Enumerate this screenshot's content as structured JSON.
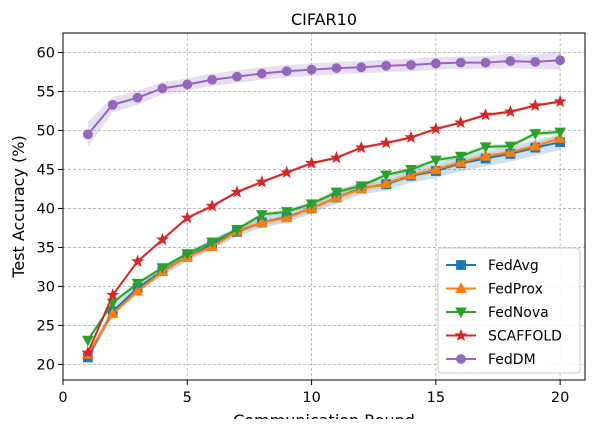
{
  "chart_data": {
    "type": "line",
    "title": "CIFAR10",
    "xlabel": "Communication Round",
    "ylabel": "Test Accuracy (%)",
    "xlim": [
      0,
      21
    ],
    "ylim": [
      18.0,
      62.5
    ],
    "xticks": [
      "0",
      "5",
      "10",
      "15",
      "20"
    ],
    "yticks": [
      "20",
      "25",
      "30",
      "35",
      "40",
      "45",
      "50",
      "55",
      "60"
    ],
    "grid": true,
    "legend_position": "lower-right",
    "x": [
      1,
      2,
      3,
      4,
      5,
      6,
      7,
      8,
      9,
      10,
      11,
      12,
      13,
      14,
      15,
      16,
      17,
      18,
      19,
      20
    ],
    "series": [
      {
        "name": "FedAvg",
        "color": "#1f77b4",
        "marker": "square",
        "values": [
          20.9,
          26.8,
          29.8,
          32.0,
          33.8,
          35.4,
          37.0,
          38.2,
          38.9,
          40.0,
          41.4,
          42.6,
          43.1,
          44.2,
          44.8,
          45.8,
          46.4,
          47.0,
          47.8,
          48.5
        ],
        "band": [
          0.5,
          0.6,
          0.6,
          0.6,
          0.6,
          0.6,
          0.6,
          0.7,
          0.7,
          0.7,
          0.8,
          0.8,
          0.8,
          0.9,
          0.9,
          1.0,
          1.0,
          1.0,
          1.0,
          1.0
        ]
      },
      {
        "name": "FedProx",
        "color": "#ff7f0e",
        "marker": "triangle-up",
        "values": [
          21.3,
          26.5,
          29.4,
          31.9,
          33.8,
          35.1,
          37.1,
          38.2,
          38.8,
          40.0,
          41.4,
          42.5,
          43.2,
          44.3,
          45.0,
          45.9,
          46.7,
          47.2,
          48.0,
          49.0
        ],
        "band": [
          0.4,
          0.4,
          0.4,
          0.4,
          0.4,
          0.4,
          0.4,
          0.4,
          0.4,
          0.4,
          0.4,
          0.4,
          0.4,
          0.4,
          0.4,
          0.4,
          0.4,
          0.4,
          0.4,
          0.4
        ]
      },
      {
        "name": "FedNova",
        "color": "#2ca02c",
        "marker": "triangle-down",
        "values": [
          23.1,
          27.9,
          30.4,
          32.4,
          34.2,
          35.7,
          37.3,
          39.2,
          39.6,
          40.6,
          42.1,
          42.9,
          44.3,
          45.0,
          46.2,
          46.7,
          47.9,
          48.0,
          49.6,
          49.8
        ],
        "band": [
          0.3,
          0.3,
          0.3,
          0.3,
          0.3,
          0.3,
          0.3,
          0.3,
          0.3,
          0.3,
          0.3,
          0.3,
          0.3,
          0.3,
          0.3,
          0.3,
          0.3,
          0.3,
          0.3,
          0.3
        ]
      },
      {
        "name": "SCAFFOLD",
        "color": "#d62728",
        "marker": "star",
        "values": [
          21.5,
          28.9,
          33.2,
          36.0,
          38.8,
          40.3,
          42.1,
          43.4,
          44.6,
          45.8,
          46.5,
          47.8,
          48.4,
          49.1,
          50.2,
          51.0,
          52.0,
          52.4,
          53.2,
          53.7
        ],
        "band": [
          0.2,
          0.2,
          0.2,
          0.2,
          0.2,
          0.2,
          0.2,
          0.2,
          0.2,
          0.2,
          0.2,
          0.2,
          0.2,
          0.2,
          0.2,
          0.2,
          0.2,
          0.2,
          0.2,
          0.2
        ]
      },
      {
        "name": "FedDM",
        "color": "#9467bd",
        "marker": "circle",
        "values": [
          49.5,
          53.3,
          54.2,
          55.4,
          55.9,
          56.5,
          56.9,
          57.3,
          57.6,
          57.8,
          58.0,
          58.1,
          58.3,
          58.4,
          58.6,
          58.7,
          58.7,
          58.9,
          58.8,
          59.0
        ],
        "band": [
          1.6,
          1.0,
          0.9,
          0.8,
          0.8,
          0.8,
          0.8,
          0.8,
          0.8,
          0.8,
          0.8,
          0.8,
          0.8,
          0.8,
          0.8,
          0.8,
          0.8,
          0.9,
          0.9,
          1.2
        ]
      }
    ]
  }
}
